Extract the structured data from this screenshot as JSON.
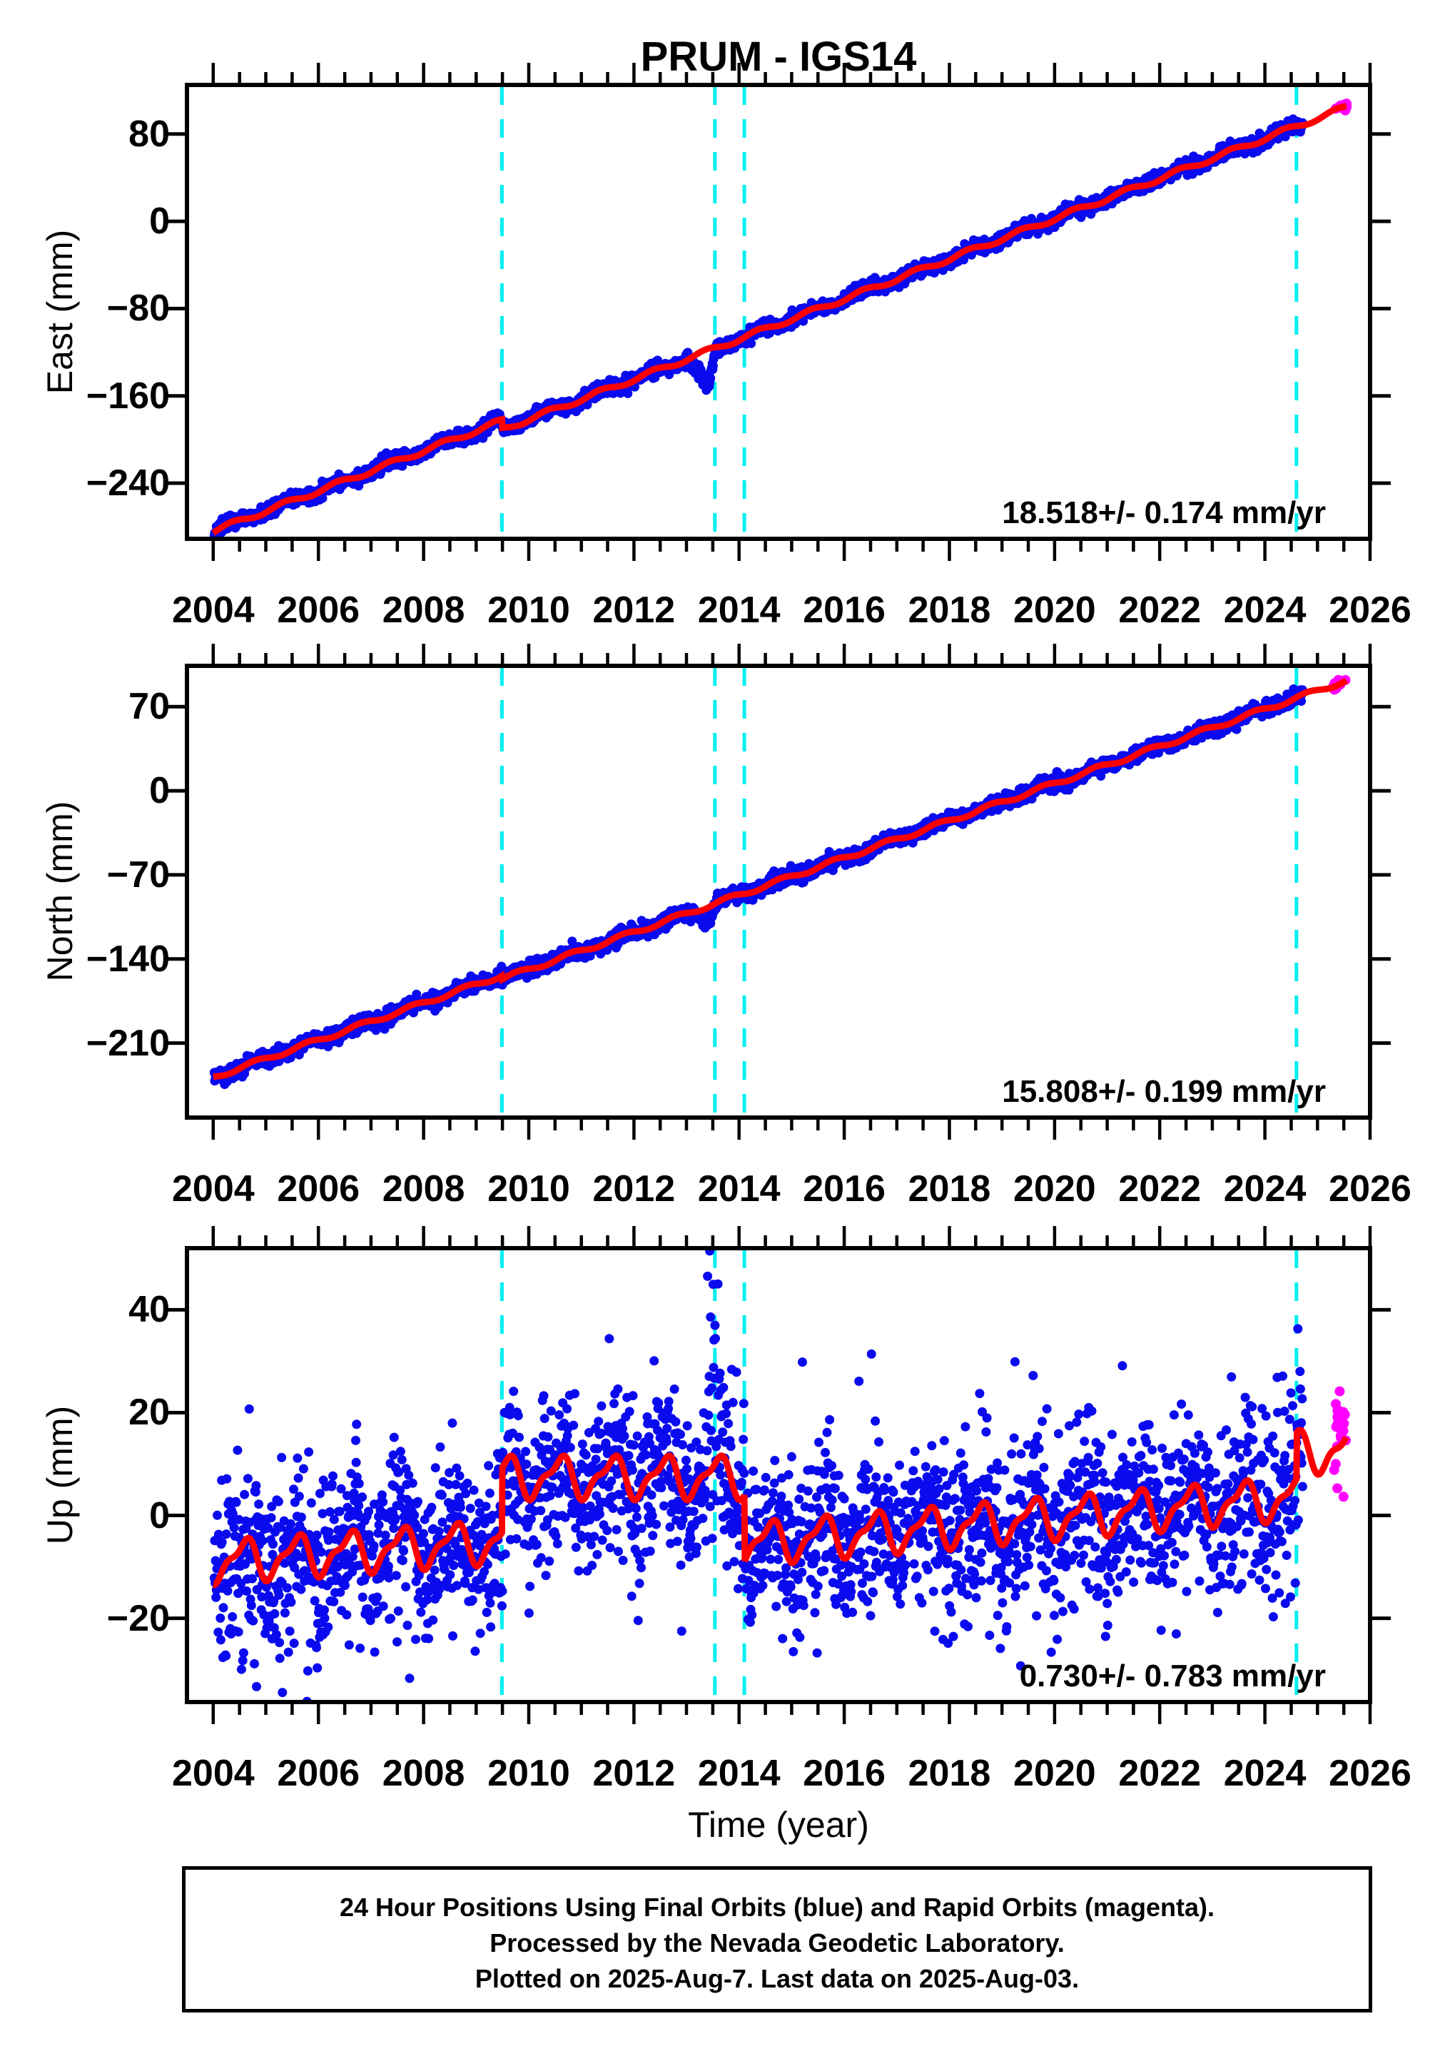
{
  "title": "PRUM - IGS14",
  "caption": {
    "line1": "24 Hour Positions Using Final Orbits (blue) and Rapid Orbits (magenta).",
    "line2": "Processed by the Nevada Geodetic Laboratory.",
    "line3": "Plotted on 2025-Aug-7. Last data on 2025-Aug-03."
  },
  "colors": {
    "final_orbits": "#0a0aef",
    "rapid_orbits": "#ff00ff",
    "trend_line": "#ff0000",
    "event_line": "#00f0f0",
    "frame": "#000000"
  },
  "x_axis": {
    "label": "Time (year)",
    "xlim": [
      2003.5,
      2026.0
    ],
    "tick_years": [
      2004,
      2006,
      2008,
      2010,
      2012,
      2014,
      2016,
      2018,
      2020,
      2022,
      2024,
      2026
    ],
    "tick_labels": [
      "2004",
      "2006",
      "2008",
      "2010",
      "2012",
      "2014",
      "2016",
      "2018",
      "2020",
      "2022",
      "2024",
      "2026"
    ],
    "minor_step": 0.5,
    "event_years": [
      2009.49,
      2013.54,
      2014.1,
      2024.6
    ]
  },
  "chart_data": [
    {
      "type": "scatter",
      "id": "east",
      "ylabel": "East (mm)",
      "rate_label": "18.518+/- 0.174 mm/yr",
      "ylim": [
        -291,
        125
      ],
      "ytick_values": [
        80,
        0,
        -80,
        -160,
        -240
      ],
      "ytick_labels": [
        "80",
        "0",
        "−80",
        "−160",
        "−240"
      ],
      "series": [
        {
          "name": "Final Orbits",
          "color_key": "final_orbits",
          "t_start": 2004.02,
          "t_end": 2024.72,
          "step_years": 0.0082,
          "noise_sigma": 3.2
        },
        {
          "name": "Rapid Orbits",
          "color_key": "rapid_orbits",
          "t_start": 2025.28,
          "t_end": 2025.56,
          "count": 16,
          "noise_sigma": 1.8
        },
        {
          "name": "Trend",
          "color_key": "trend_line",
          "t_start": 2004.0,
          "t_end": 2025.55
        }
      ],
      "trend": {
        "t0": 2004.0,
        "v0": -284,
        "slope_mm_per_yr": 18.4,
        "steps": [
          {
            "t": 2009.49,
            "offset_mm": -8
          }
        ],
        "seasonal_amp": 2.2,
        "seasonal_phase": 0.12
      },
      "anomaly": {
        "type": "dip",
        "t_start": 2013.05,
        "t_bottom": 2013.42,
        "t_end": 2013.56,
        "depth_mm": -36
      },
      "outlier_windows": []
    },
    {
      "type": "scatter",
      "id": "north",
      "ylabel": "North (mm)",
      "rate_label": "15.808+/- 0.199 mm/yr",
      "ylim": [
        -272,
        104
      ],
      "ytick_values": [
        70,
        0,
        -70,
        -140,
        -210
      ],
      "ytick_labels": [
        "70",
        "0",
        "−70",
        "−140",
        "−210"
      ],
      "series": [
        {
          "name": "Final Orbits",
          "color_key": "final_orbits",
          "t_start": 2004.02,
          "t_end": 2024.72,
          "step_years": 0.0082,
          "noise_sigma": 3.0
        },
        {
          "name": "Rapid Orbits",
          "color_key": "rapid_orbits",
          "t_start": 2025.3,
          "t_end": 2025.55,
          "count": 12,
          "noise_sigma": 1.8
        },
        {
          "name": "Trend",
          "color_key": "trend_line",
          "t_start": 2004.0,
          "t_end": 2025.55
        }
      ],
      "trend": {
        "t0": 2004.0,
        "v0": -238.5,
        "slope_mm_per_yr": 15.47,
        "steps": [
          {
            "t": 2009.49,
            "offset_mm": -3
          }
        ],
        "seasonal_amp": 1.8,
        "seasonal_phase": 0.55
      },
      "anomaly": {
        "type": "dip",
        "t_start": 2013.1,
        "t_bottom": 2013.42,
        "t_end": 2013.58,
        "depth_mm": -13
      },
      "outlier_windows": []
    },
    {
      "type": "scatter",
      "id": "up",
      "ylabel": "Up (mm)",
      "rate_label": "0.730+/- 0.783 mm/yr",
      "ylim": [
        -36.3,
        52
      ],
      "ytick_values": [
        40,
        20,
        0,
        -20
      ],
      "ytick_labels": [
        "40",
        "20",
        "0",
        "−20"
      ],
      "series": [
        {
          "name": "Final Orbits",
          "color_key": "final_orbits",
          "t_start": 2004.02,
          "t_end": 2024.72,
          "step_years": 0.0082,
          "noise_sigma": 8.0
        },
        {
          "name": "Rapid Orbits",
          "color_key": "rapid_orbits",
          "t_start": 2025.3,
          "t_end": 2025.55,
          "count": 22,
          "mean": 13.5,
          "noise_sigma": 7.5,
          "clip": [
            2,
            33
          ]
        },
        {
          "name": "Trend",
          "color_key": "trend_line",
          "t_start": 2004.0,
          "t_end": 2025.55
        }
      ],
      "trend": {
        "segments": [
          {
            "t0": 2004.0,
            "t1": 2009.49,
            "v0": -9.0,
            "v1": -5.0
          },
          {
            "t0": 2009.49,
            "t1": 2014.1,
            "v0": 7.5,
            "v1": 7.5
          },
          {
            "t0": 2014.1,
            "t1": 2024.6,
            "v0": -5.5,
            "v1": 3.5
          },
          {
            "t0": 2024.6,
            "t1": 2025.56,
            "v0": 12.5,
            "v1": 12.5
          }
        ],
        "seasonal_amp": 3.6,
        "seasonal_phase": 0.33,
        "seasonal2_amp": 1.4
      },
      "anomaly": null,
      "outlier_windows": [
        {
          "t_start": 2004.1,
          "t_end": 2006.0,
          "prob": 0.18,
          "min": 6,
          "max": 24,
          "sign": -1
        },
        {
          "t_start": 2013.4,
          "t_end": 2013.62,
          "prob": 0.45,
          "min": 8,
          "max": 42,
          "sign": 1
        },
        {
          "t_start": 2019.0,
          "t_end": 2024.6,
          "prob": 0.04,
          "min": 10,
          "max": 20,
          "sign": 0
        },
        {
          "t_start": 2004.0,
          "t_end": 2025.0,
          "prob": 0.012,
          "min": 12,
          "max": 22,
          "sign": 0
        }
      ]
    }
  ]
}
